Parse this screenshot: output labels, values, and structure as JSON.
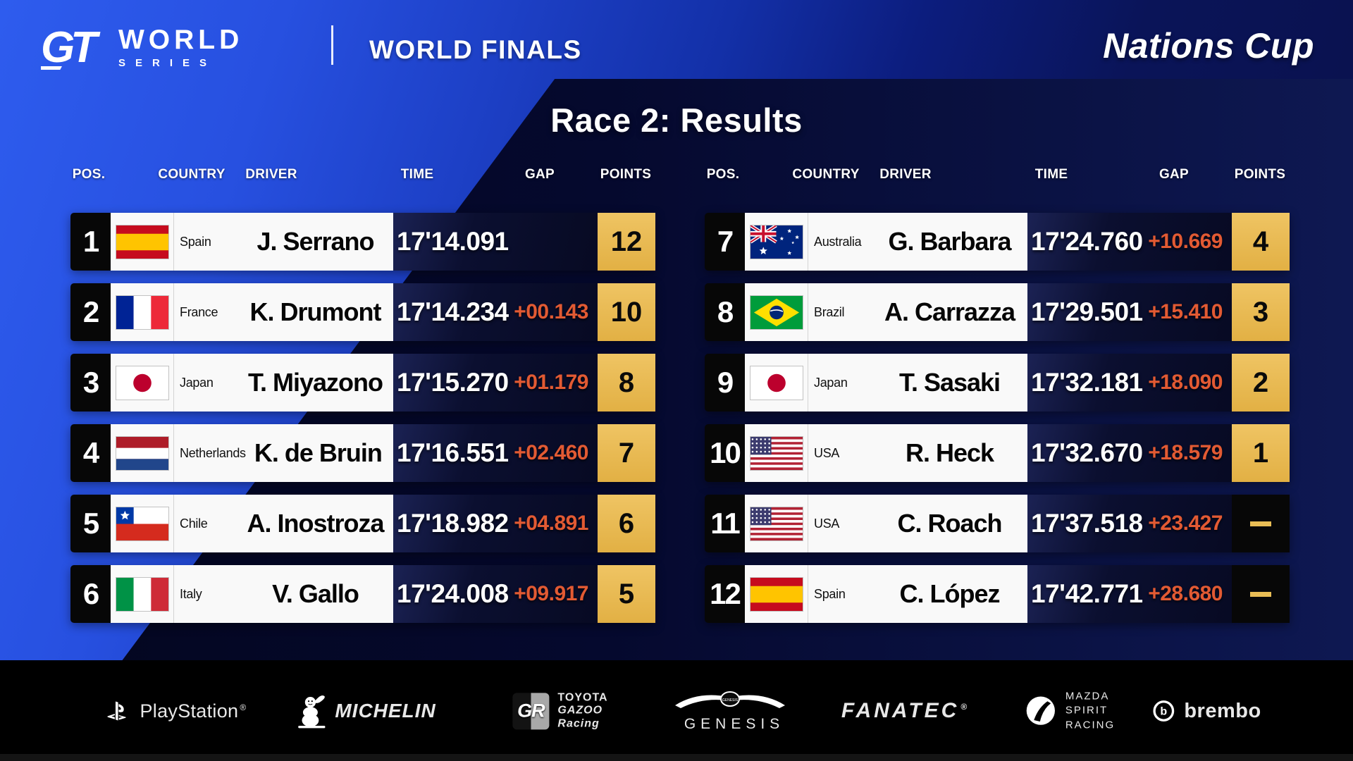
{
  "header": {
    "brand": {
      "mark": "gt-logo",
      "line1": "WORLD",
      "line2": "SERIES"
    },
    "event": "WORLD FINALS",
    "cup": "Nations Cup"
  },
  "title": "Race 2: Results",
  "table": {
    "columns": [
      "POS.",
      "COUNTRY",
      "DRIVER",
      "TIME",
      "GAP",
      "POINTS"
    ],
    "rows": [
      {
        "pos": "1",
        "country": "Spain",
        "flag": "spain",
        "driver": "J. Serrano",
        "time": "17'14.091",
        "gap": "",
        "points": "12"
      },
      {
        "pos": "2",
        "country": "France",
        "flag": "france",
        "driver": "K. Drumont",
        "time": "17'14.234",
        "gap": "+00.143",
        "points": "10"
      },
      {
        "pos": "3",
        "country": "Japan",
        "flag": "japan",
        "driver": "T. Miyazono",
        "time": "17'15.270",
        "gap": "+01.179",
        "points": "8"
      },
      {
        "pos": "4",
        "country": "Netherlands",
        "flag": "netherlands",
        "driver": "K. de Bruin",
        "time": "17'16.551",
        "gap": "+02.460",
        "points": "7"
      },
      {
        "pos": "5",
        "country": "Chile",
        "flag": "chile",
        "driver": "A. Inostroza",
        "time": "17'18.982",
        "gap": "+04.891",
        "points": "6"
      },
      {
        "pos": "6",
        "country": "Italy",
        "flag": "italy",
        "driver": "V. Gallo",
        "time": "17'24.008",
        "gap": "+09.917",
        "points": "5"
      },
      {
        "pos": "7",
        "country": "Australia",
        "flag": "australia",
        "driver": "G. Barbara",
        "time": "17'24.760",
        "gap": "+10.669",
        "points": "4"
      },
      {
        "pos": "8",
        "country": "Brazil",
        "flag": "brazil",
        "driver": "A. Carrazza",
        "time": "17'29.501",
        "gap": "+15.410",
        "points": "3"
      },
      {
        "pos": "9",
        "country": "Japan",
        "flag": "japan",
        "driver": "T. Sasaki",
        "time": "17'32.181",
        "gap": "+18.090",
        "points": "2"
      },
      {
        "pos": "10",
        "country": "USA",
        "flag": "usa",
        "driver": "R. Heck",
        "time": "17'32.670",
        "gap": "+18.579",
        "points": "1"
      },
      {
        "pos": "11",
        "country": "USA",
        "flag": "usa",
        "driver": "C. Roach",
        "time": "17'37.518",
        "gap": "+23.427",
        "points": null
      },
      {
        "pos": "12",
        "country": "Spain",
        "flag": "spain",
        "driver": "C. López",
        "time": "17'42.771",
        "gap": "+28.680",
        "points": null
      }
    ]
  },
  "sponsors": [
    {
      "name": "playstation",
      "icon": "playstation-icon",
      "label": "PlayStation",
      "reg": "®"
    },
    {
      "name": "michelin",
      "icon": "michelin-man-icon",
      "label": "MICHELIN"
    },
    {
      "name": "toyota-gazoo-racing",
      "icon": "gr-logo-icon",
      "box": "GR",
      "lines": [
        "TOYOTA",
        "GAZOO",
        "Racing"
      ]
    },
    {
      "name": "genesis",
      "icon": "genesis-wings-icon",
      "label": "GENESIS"
    },
    {
      "name": "fanatec",
      "icon": "",
      "label": "FANATEC",
      "reg": "®"
    },
    {
      "name": "mazda-spirit-racing",
      "icon": "mazda-circle-icon",
      "lines": [
        "MAZDA",
        "SPIRIT",
        "RACING"
      ]
    },
    {
      "name": "brembo",
      "icon": "brembo-circle-icon",
      "label": "brembo"
    }
  ],
  "colors": {
    "points_gold": "#e9bd55",
    "gap_orange": "#e25a33",
    "bright_blue": "#2750e0",
    "dark_navy": "#070c3c",
    "row_dark": "#0b0f30"
  }
}
